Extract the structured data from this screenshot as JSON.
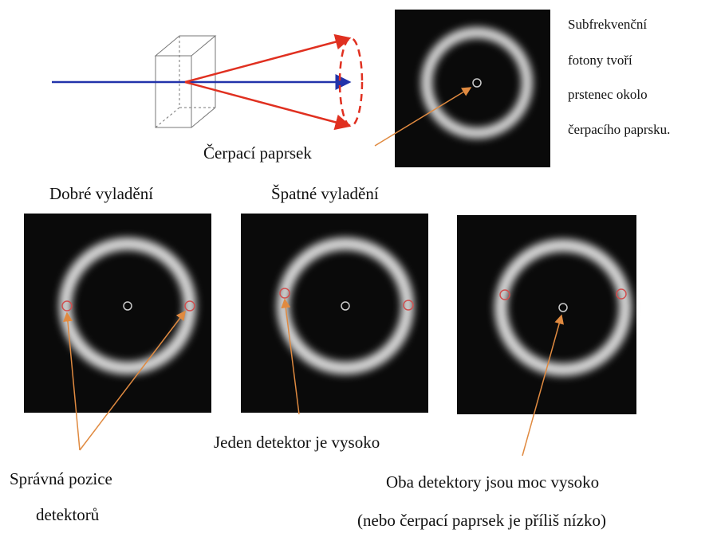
{
  "top_note": [
    "Subfrekvenční",
    "fotony tvoří",
    "prstenec okolo",
    "čerpacího paprsku."
  ],
  "pump_label": "Čerpací paprsek",
  "good_title": "Dobré vyladění",
  "bad_title": "Špatné vyladění",
  "one_high": "Jeden detektor je vysoko",
  "correct": [
    "Správná pozice",
    "detektorů"
  ],
  "both_high": [
    "Oba detektory jsou moc vysoko",
    "(nebo čerpací paprsek je příliš nízko)"
  ]
}
